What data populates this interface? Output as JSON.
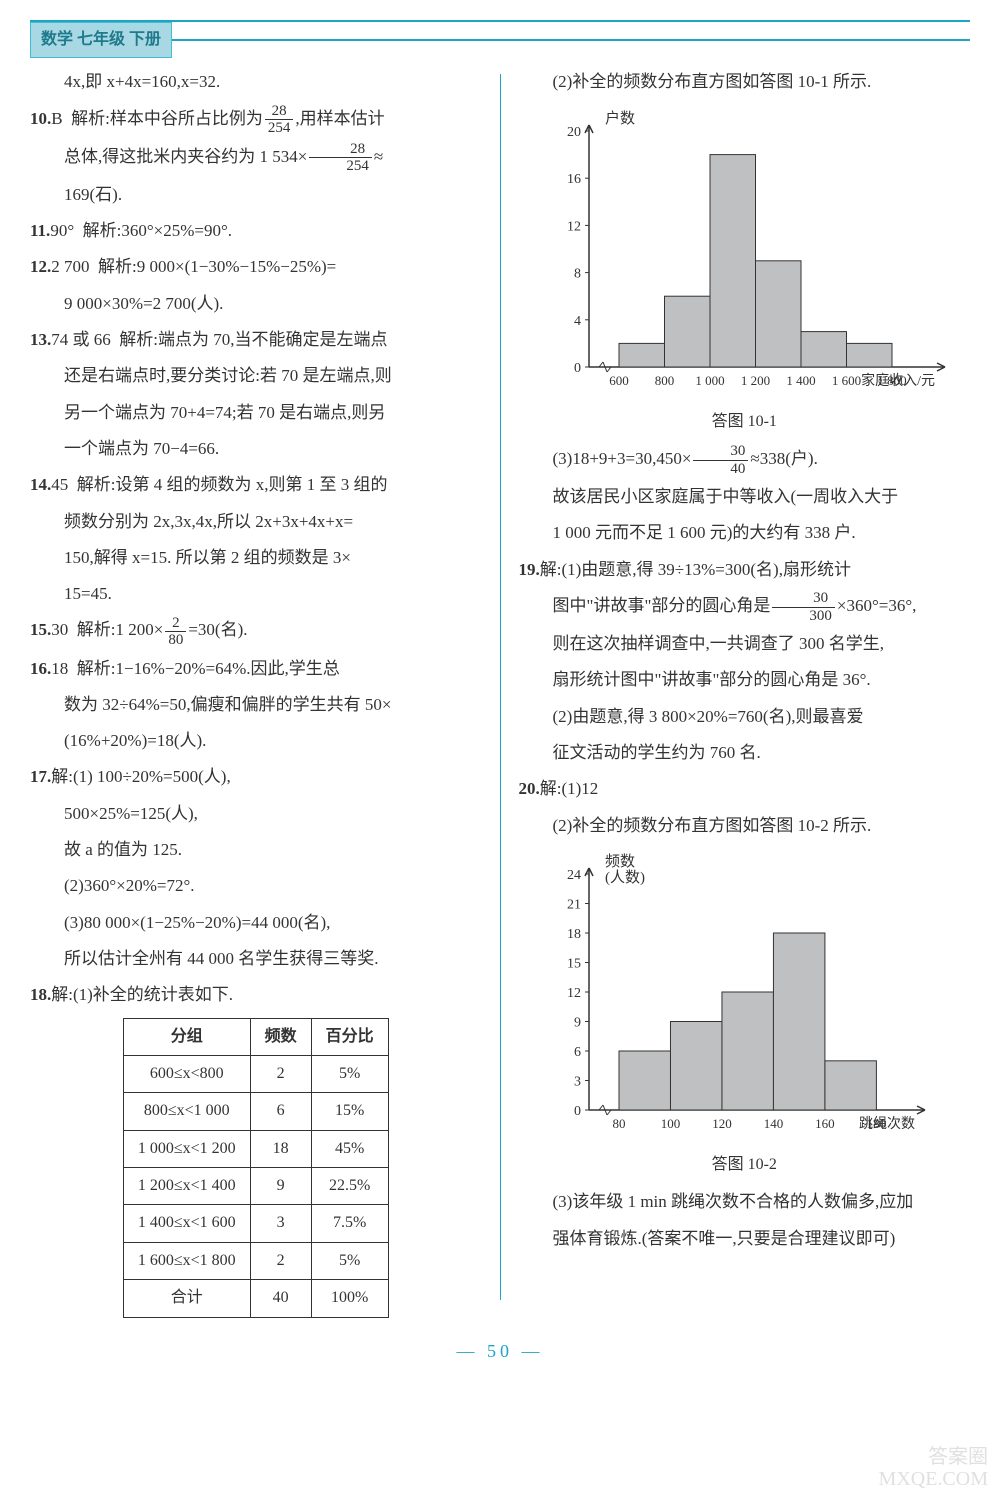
{
  "header": {
    "title": "数学 七年级 下册"
  },
  "left": {
    "p1": "4x,即 x+4x=160,x=32.",
    "q10": {
      "num": "10.",
      "ans": "B",
      "label": "解析:",
      "text1": "样本中谷所占比例为",
      "frac1": {
        "n": "28",
        "d": "254"
      },
      "text2": ",用样本估计",
      "line2a": "总体,得这批米内夹谷约为 1 534×",
      "frac2": {
        "n": "28",
        "d": "254"
      },
      "line2b": "≈",
      "line3": "169(石)."
    },
    "q11": {
      "num": "11.",
      "ans": "90°",
      "label": "解析:",
      "text": "360°×25%=90°."
    },
    "q12": {
      "num": "12.",
      "ans": "2 700",
      "label": "解析:",
      "text1": "9 000×(1−30%−15%−25%)=",
      "text2": "9 000×30%=2 700(人)."
    },
    "q13": {
      "num": "13.",
      "ans": "74 或 66",
      "label": "解析:",
      "l1": "端点为 70,当不能确定是左端点",
      "l2": "还是右端点时,要分类讨论:若 70 是左端点,则",
      "l3": "另一个端点为 70+4=74;若 70 是右端点,则另",
      "l4": "一个端点为 70−4=66."
    },
    "q14": {
      "num": "14.",
      "ans": "45",
      "label": "解析:",
      "l1": "设第 4 组的频数为 x,则第 1 至 3 组的",
      "l2": "频数分别为 2x,3x,4x,所以 2x+3x+4x+x=",
      "l3": "150,解得 x=15. 所以第 2 组的频数是 3×",
      "l4": "15=45."
    },
    "q15": {
      "num": "15.",
      "ans": "30",
      "label": "解析:",
      "t1": "1 200×",
      "frac": {
        "n": "2",
        "d": "80"
      },
      "t2": "=30(名)."
    },
    "q16": {
      "num": "16.",
      "ans": "18",
      "label": "解析:",
      "l1": "1−16%−20%=64%.因此,学生总",
      "l2": "数为 32÷64%=50,偏瘦和偏胖的学生共有 50×",
      "l3": "(16%+20%)=18(人)."
    },
    "q17": {
      "num": "17.",
      "head": "解:",
      "l1": "(1) 100÷20%=500(人),",
      "l2": "500×25%=125(人),",
      "l3": "故 a 的值为 125.",
      "l4": "(2)360°×20%=72°.",
      "l5": "(3)80 000×(1−25%−20%)=44 000(名),",
      "l6": "所以估计全州有 44 000 名学生获得三等奖."
    },
    "q18": {
      "num": "18.",
      "head": "解:",
      "text": "(1)补全的统计表如下."
    },
    "table": {
      "headers": [
        "分组",
        "频数",
        "百分比"
      ],
      "rows": [
        [
          "600≤x<800",
          "2",
          "5%"
        ],
        [
          "800≤x<1 000",
          "6",
          "15%"
        ],
        [
          "1 000≤x<1 200",
          "18",
          "45%"
        ],
        [
          "1 200≤x<1 400",
          "9",
          "22.5%"
        ],
        [
          "1 400≤x<1 600",
          "3",
          "7.5%"
        ],
        [
          "1 600≤x<1 800",
          "2",
          "5%"
        ],
        [
          "合计",
          "40",
          "100%"
        ]
      ]
    }
  },
  "right": {
    "p1": "(2)补全的频数分布直方图如答图 10-1 所示.",
    "chart1": {
      "type": "histogram",
      "y_label": "户数",
      "x_label": "家庭收入/元",
      "caption": "答图 10-1",
      "x_ticks": [
        "600",
        "800",
        "1 000",
        "1 200",
        "1 400",
        "1 600",
        "1 800"
      ],
      "y_ticks": [
        0,
        4,
        8,
        12,
        16,
        20
      ],
      "ylim": [
        0,
        20
      ],
      "values": [
        2,
        6,
        18,
        9,
        3,
        2
      ],
      "bar_fill": "#bfc0c2",
      "bar_stroke": "#333333",
      "axis_color": "#333333",
      "bg": "#ffffff",
      "bar_width": 1.0
    },
    "p2a": "(3)18+9+3=30,450×",
    "frac3": {
      "n": "30",
      "d": "40"
    },
    "p2b": "≈338(户).",
    "p3": "故该居民小区家庭属于中等收入(一周收入大于",
    "p4": "1 000 元而不足 1 600 元)的大约有 338 户.",
    "q19": {
      "num": "19.",
      "head": "解:",
      "l1": "(1)由题意,得 39÷13%=300(名),扇形统计",
      "l2a": "图中\"讲故事\"部分的圆心角是",
      "frac": {
        "n": "30",
        "d": "300"
      },
      "l2b": "×360°=36°,",
      "l3": "则在这次抽样调查中,一共调查了 300 名学生,",
      "l4": "扇形统计图中\"讲故事\"部分的圆心角是 36°.",
      "l5": "(2)由题意,得 3 800×20%=760(名),则最喜爱",
      "l6": "征文活动的学生约为 760 名."
    },
    "q20": {
      "num": "20.",
      "head": "解:",
      "l1": "(1)12",
      "l2": "(2)补全的频数分布直方图如答图 10-2 所示."
    },
    "chart2": {
      "type": "histogram",
      "y_label_1": "频数",
      "y_label_2": "(人数)",
      "x_label": "跳绳次数",
      "caption": "答图 10-2",
      "x_ticks": [
        "80",
        "100",
        "120",
        "140",
        "160",
        "180"
      ],
      "y_ticks": [
        0,
        3,
        6,
        9,
        12,
        15,
        18,
        21,
        24
      ],
      "ylim": [
        0,
        24
      ],
      "values": [
        6,
        9,
        12,
        18,
        5
      ],
      "bar_fill": "#bfc0c2",
      "bar_stroke": "#333333",
      "axis_color": "#333333",
      "bg": "#ffffff",
      "bar_width": 1.0
    },
    "p5": "(3)该年级 1 min 跳绳次数不合格的人数偏多,应加",
    "p6": "强体育锻炼.(答案不唯一,只要是合理建议即可)"
  },
  "footer": {
    "page": "50"
  },
  "watermark": {
    "l1": "答案圈",
    "l2": "MXQE.COM"
  }
}
